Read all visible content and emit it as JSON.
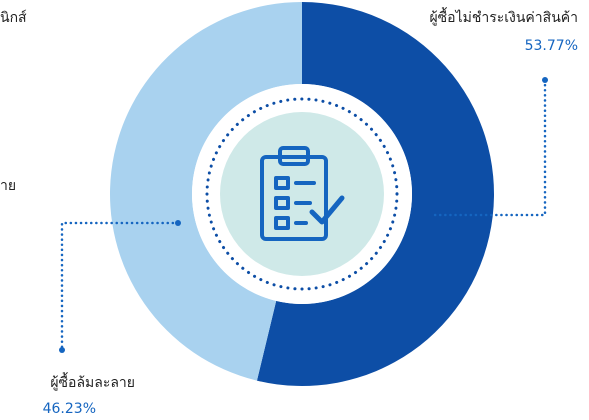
{
  "chart_data": {
    "type": "donut",
    "categories": [
      "ผู้ซื้อไม่ชำระเงินค่าสินค้า",
      "ผู้ซื้อล้มละลาย"
    ],
    "values": [
      53.77,
      46.23
    ],
    "value_labels": [
      "53.77%",
      "46.23%"
    ],
    "colors": [
      "#0d4ea6",
      "#a9d2ef"
    ],
    "annotations": [
      "นิกส์",
      "าย"
    ]
  }
}
